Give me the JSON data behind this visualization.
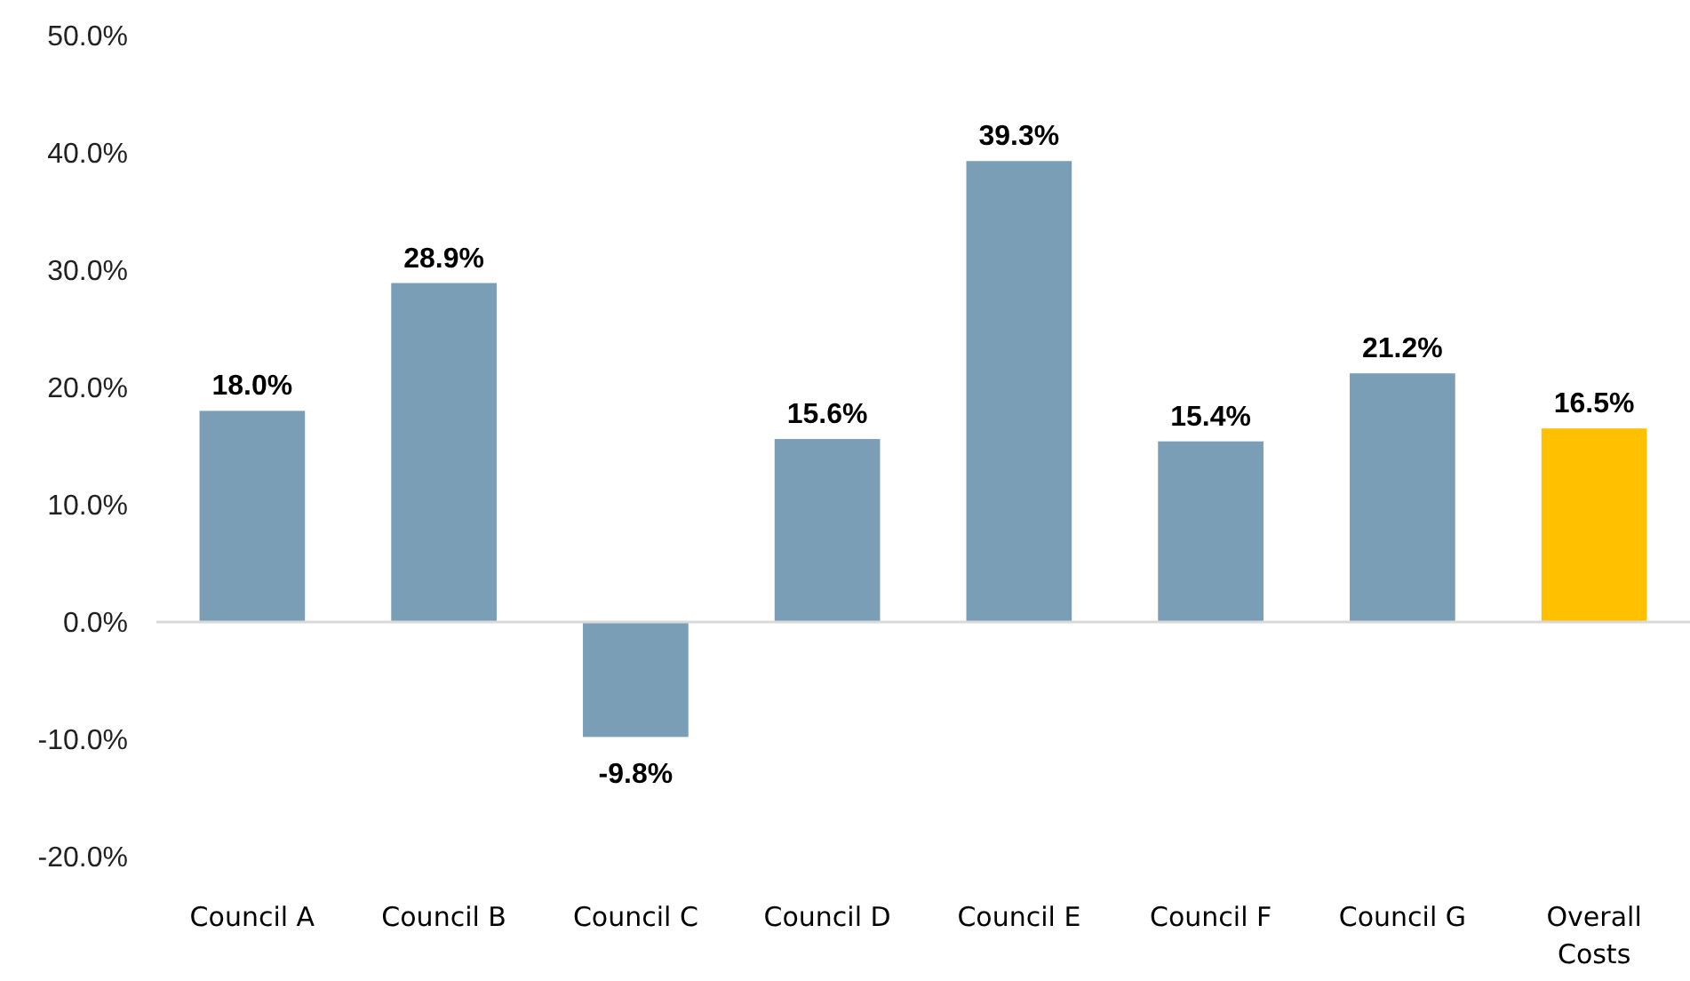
{
  "chart_data": {
    "type": "bar",
    "categories": [
      "Council A",
      "Council B",
      "Council C",
      "Council D",
      "Council E",
      "Council F",
      "Council G",
      "Overall Costs"
    ],
    "values": [
      18.0,
      28.9,
      -9.8,
      15.6,
      39.3,
      15.4,
      21.2,
      16.5
    ],
    "colors": [
      "#7a9eb6",
      "#7a9eb6",
      "#7a9eb6",
      "#7a9eb6",
      "#7a9eb6",
      "#7a9eb6",
      "#7a9eb6",
      "#ffc000"
    ],
    "value_labels": [
      "18.0%",
      "28.9%",
      "-9.8%",
      "15.6%",
      "39.3%",
      "15.4%",
      "21.2%",
      "16.5%"
    ],
    "ylim": [
      -20,
      50
    ],
    "yticks": [
      {
        "value": -20,
        "label": "-20.0%"
      },
      {
        "value": -10,
        "label": "-10.0%"
      },
      {
        "value": 0,
        "label": "0.0%"
      },
      {
        "value": 10,
        "label": "10.0%"
      },
      {
        "value": 20,
        "label": "20.0%"
      },
      {
        "value": 30,
        "label": "30.0%"
      },
      {
        "value": 40,
        "label": "40.0%"
      },
      {
        "value": 50,
        "label": "50.0%"
      }
    ],
    "tick_labels": "xy"
  }
}
